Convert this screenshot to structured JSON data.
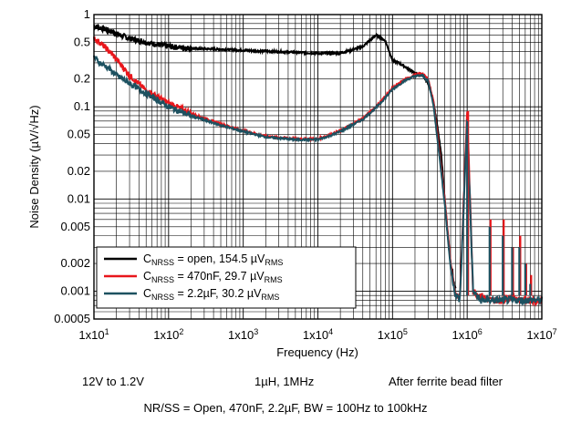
{
  "chart_data": {
    "type": "line",
    "title": "",
    "xlabel": "Frequency (Hz)",
    "ylabel": "Noise Density (µV/√Hz)",
    "xscale": "log",
    "yscale": "log",
    "xlim": [
      10,
      10000000
    ],
    "ylim": [
      0.0005,
      1
    ],
    "grid": true,
    "legend_position": "bottom-left",
    "x_ticks": [
      {
        "base": "1x10",
        "exp": "1"
      },
      {
        "base": "1x10",
        "exp": "2"
      },
      {
        "base": "1x10",
        "exp": "3"
      },
      {
        "base": "1x10",
        "exp": "4"
      },
      {
        "base": "1x10",
        "exp": "5"
      },
      {
        "base": "1x10",
        "exp": "6"
      },
      {
        "base": "1x10",
        "exp": "7"
      }
    ],
    "y_ticks": [
      "1",
      "0.5",
      "0.2",
      "0.1",
      "0.05",
      "0.02",
      "0.01",
      "0.005",
      "0.002",
      "0.001",
      "0.0005"
    ],
    "y_tick_values": [
      1,
      0.5,
      0.2,
      0.1,
      0.05,
      0.02,
      0.01,
      0.005,
      0.002,
      0.001,
      0.0005
    ],
    "series": [
      {
        "label_main": "C",
        "label_sub": "NRSS",
        "label_rest": " = open, 154.5 µV",
        "label_sub2": "RMS",
        "color": "#000000",
        "x": [
          10,
          12,
          15,
          20,
          30,
          50,
          100,
          200,
          500,
          1000,
          2000,
          5000,
          10000,
          20000,
          40000,
          60000,
          80000,
          100000,
          120000,
          150000,
          200000,
          250000,
          300000,
          350000,
          400000,
          450000,
          500000,
          550000,
          600000,
          700000
        ],
        "y": [
          0.75,
          0.72,
          0.68,
          0.62,
          0.55,
          0.5,
          0.45,
          0.43,
          0.42,
          0.41,
          0.4,
          0.39,
          0.38,
          0.38,
          0.45,
          0.6,
          0.52,
          0.32,
          0.3,
          0.27,
          0.23,
          0.22,
          0.18,
          0.12,
          0.06,
          0.03,
          0.01,
          0.004,
          0.002,
          0.001
        ]
      },
      {
        "label_main": "C",
        "label_sub": "NRSS",
        "label_rest": " = 470nF, 29.7 µV",
        "label_sub2": "RMS",
        "color": "#e8161b",
        "x": [
          10,
          12,
          15,
          20,
          30,
          50,
          100,
          200,
          500,
          1000,
          2000,
          5000,
          10000,
          15000,
          20000,
          40000,
          60000,
          80000,
          100000,
          150000,
          200000,
          250000,
          300000,
          350000,
          400000,
          500000,
          600000,
          700000,
          800000,
          1000000,
          1200000,
          1500000,
          2000000,
          3000000,
          4000000,
          5000000,
          7000000,
          10000000
        ],
        "y": [
          0.55,
          0.5,
          0.42,
          0.33,
          0.22,
          0.15,
          0.11,
          0.085,
          0.065,
          0.055,
          0.048,
          0.045,
          0.045,
          0.05,
          0.055,
          0.075,
          0.1,
          0.13,
          0.16,
          0.2,
          0.22,
          0.23,
          0.2,
          0.12,
          0.05,
          0.01,
          0.002,
          0.0009,
          0.0009,
          0.09,
          0.001,
          0.0009,
          0.0008,
          0.0008,
          0.0009,
          0.0008,
          0.0008,
          0.0008
        ]
      },
      {
        "label_main": "C",
        "label_sub": "NRSS",
        "label_rest": " = 2.2µF, 30.2 µV",
        "label_sub2": "RMS",
        "color": "#1d5160",
        "x": [
          10,
          12,
          15,
          20,
          30,
          50,
          100,
          200,
          500,
          1000,
          2000,
          5000,
          10000,
          15000,
          20000,
          40000,
          60000,
          80000,
          100000,
          150000,
          200000,
          250000,
          300000,
          350000,
          400000,
          500000,
          600000,
          700000,
          800000,
          1000000,
          1200000,
          1500000,
          2000000,
          3000000,
          4000000,
          5000000,
          7000000,
          10000000
        ],
        "y": [
          0.35,
          0.3,
          0.27,
          0.22,
          0.18,
          0.14,
          0.1,
          0.08,
          0.063,
          0.054,
          0.047,
          0.044,
          0.044,
          0.049,
          0.054,
          0.073,
          0.098,
          0.125,
          0.155,
          0.195,
          0.215,
          0.22,
          0.19,
          0.11,
          0.045,
          0.009,
          0.0018,
          0.0009,
          0.0008,
          0.07,
          0.001,
          0.0008,
          0.0008,
          0.0008,
          0.0008,
          0.0008,
          0.0008,
          0.0008
        ]
      }
    ],
    "spikes": [
      {
        "x": 1000000,
        "y_red": 0.09,
        "y_teal": 0.07
      },
      {
        "x": 2000000,
        "y_red": 0.006,
        "y_teal": 0.005
      },
      {
        "x": 3000000,
        "y_red": 0.006,
        "y_teal": 0.004
      },
      {
        "x": 4000000,
        "y_red": 0.003,
        "y_teal": 0.003
      },
      {
        "x": 5000000,
        "y_red": 0.004,
        "y_teal": 0.003
      },
      {
        "x": 6000000,
        "y_red": 0.002,
        "y_teal": 0.002
      },
      {
        "x": 7000000,
        "y_red": 0.0015,
        "y_teal": 0.0012
      }
    ]
  },
  "captions": {
    "line1_left": "12V to 1.2V",
    "line1_mid": "1µH, 1MHz",
    "line1_right": "After ferrite bead filter",
    "line2": "NR/SS = Open, 470nF, 2.2µF, BW = 100Hz to 100kHz"
  }
}
